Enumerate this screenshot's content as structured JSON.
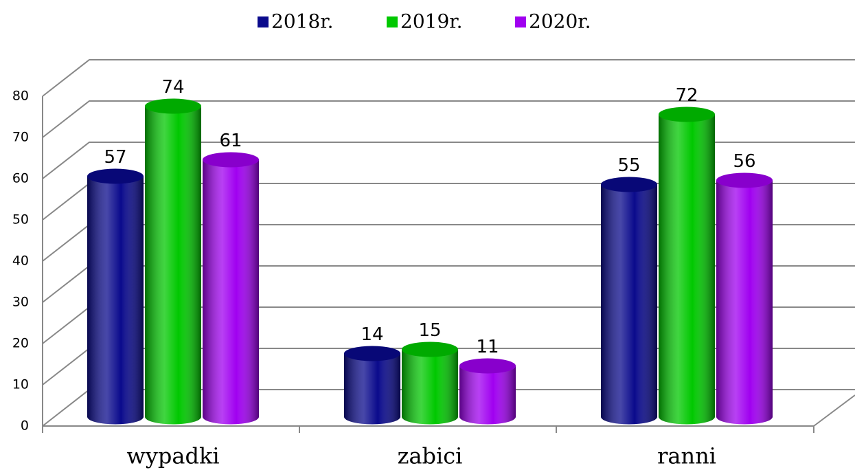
{
  "chart_data": {
    "type": "bar3d",
    "categories": [
      "wypadki",
      "zabici",
      "ranni"
    ],
    "series": [
      {
        "name": "2018r.",
        "color": "#0a0a8c",
        "values": [
          57,
          14,
          55
        ]
      },
      {
        "name": "2019r.",
        "color": "#00c800",
        "values": [
          74,
          15,
          72
        ]
      },
      {
        "name": "2020r.",
        "color": "#a000f0",
        "values": [
          61,
          11,
          56
        ]
      }
    ],
    "ylim": [
      0,
      80
    ],
    "yticks": [
      0,
      10,
      20,
      30,
      40,
      50,
      60,
      70,
      80
    ],
    "grid": true,
    "legend": "top"
  }
}
